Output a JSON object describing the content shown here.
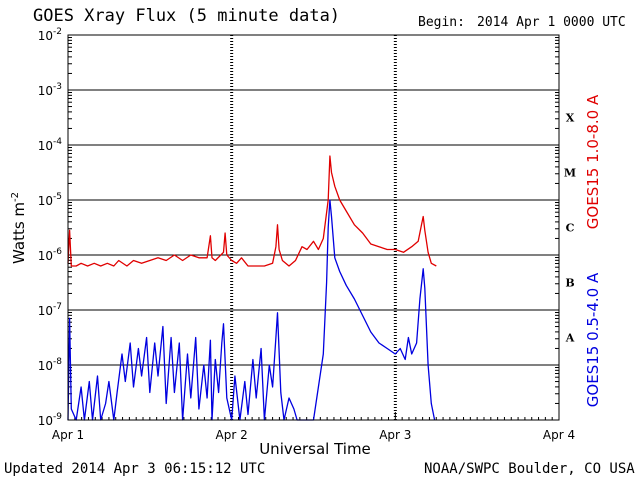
{
  "header": {
    "title": "GOES Xray Flux (5 minute data)",
    "begin_label": "Begin:",
    "begin_value": "2014 Apr 1 0000 UTC"
  },
  "footer": {
    "updated": "Updated 2014 Apr  3 06:15:12 UTC",
    "credit": "NOAA/SWPC Boulder, CO USA"
  },
  "chart_data": {
    "type": "line",
    "title": "GOES Xray Flux (5 minute data)",
    "xlabel": "Universal Time",
    "ylabel": "Watts m",
    "ylabel_sup": "-2",
    "yscale": "log",
    "ylim_exp": [
      -9,
      -2
    ],
    "xlim_days": [
      0,
      3
    ],
    "grid": true,
    "x_ticks": [
      {
        "x": 0,
        "label": "Apr 1"
      },
      {
        "x": 1,
        "label": "Apr 2"
      },
      {
        "x": 2,
        "label": "Apr 3"
      },
      {
        "x": 3,
        "label": "Apr 4"
      }
    ],
    "y_ticks": [
      {
        "exp": -9,
        "label": "10",
        "sup": "-9"
      },
      {
        "exp": -8,
        "label": "10",
        "sup": "-8"
      },
      {
        "exp": -7,
        "label": "10",
        "sup": "-7"
      },
      {
        "exp": -6,
        "label": "10",
        "sup": "-6"
      },
      {
        "exp": -5,
        "label": "10",
        "sup": "-5"
      },
      {
        "exp": -4,
        "label": "10",
        "sup": "-4"
      },
      {
        "exp": -3,
        "label": "10",
        "sup": "-3"
      },
      {
        "exp": -2,
        "label": "10",
        "sup": "-2"
      }
    ],
    "flare_classes": [
      {
        "label": "A",
        "exp": -7.5
      },
      {
        "label": "B",
        "exp": -6.5
      },
      {
        "label": "C",
        "exp": -5.5
      },
      {
        "label": "M",
        "exp": -4.5
      },
      {
        "label": "X",
        "exp": -3.5
      }
    ],
    "series": [
      {
        "name": "GOES15 1.0-8.0 A",
        "color": "#e00000",
        "points": [
          [
            0.0,
            -6.15
          ],
          [
            0.01,
            -5.55
          ],
          [
            0.02,
            -6.2
          ],
          [
            0.05,
            -6.2
          ],
          [
            0.08,
            -6.15
          ],
          [
            0.12,
            -6.2
          ],
          [
            0.16,
            -6.15
          ],
          [
            0.2,
            -6.2
          ],
          [
            0.24,
            -6.15
          ],
          [
            0.28,
            -6.2
          ],
          [
            0.31,
            -6.1
          ],
          [
            0.36,
            -6.2
          ],
          [
            0.4,
            -6.1
          ],
          [
            0.45,
            -6.15
          ],
          [
            0.5,
            -6.1
          ],
          [
            0.55,
            -6.05
          ],
          [
            0.6,
            -6.1
          ],
          [
            0.65,
            -6.0
          ],
          [
            0.7,
            -6.1
          ],
          [
            0.75,
            -6.0
          ],
          [
            0.8,
            -6.05
          ],
          [
            0.85,
            -6.05
          ],
          [
            0.87,
            -5.65
          ],
          [
            0.88,
            -6.05
          ],
          [
            0.9,
            -6.1
          ],
          [
            0.95,
            -5.95
          ],
          [
            0.96,
            -5.6
          ],
          [
            0.97,
            -6.0
          ],
          [
            1.0,
            -6.1
          ],
          [
            1.03,
            -6.15
          ],
          [
            1.06,
            -6.05
          ],
          [
            1.1,
            -6.2
          ],
          [
            1.15,
            -6.2
          ],
          [
            1.2,
            -6.2
          ],
          [
            1.25,
            -6.15
          ],
          [
            1.27,
            -5.85
          ],
          [
            1.28,
            -5.45
          ],
          [
            1.29,
            -5.9
          ],
          [
            1.31,
            -6.1
          ],
          [
            1.35,
            -6.2
          ],
          [
            1.39,
            -6.1
          ],
          [
            1.43,
            -5.85
          ],
          [
            1.46,
            -5.9
          ],
          [
            1.5,
            -5.75
          ],
          [
            1.53,
            -5.9
          ],
          [
            1.56,
            -5.7
          ],
          [
            1.59,
            -5.0
          ],
          [
            1.6,
            -4.2
          ],
          [
            1.61,
            -4.5
          ],
          [
            1.63,
            -4.75
          ],
          [
            1.66,
            -5.0
          ],
          [
            1.7,
            -5.2
          ],
          [
            1.75,
            -5.45
          ],
          [
            1.8,
            -5.6
          ],
          [
            1.85,
            -5.8
          ],
          [
            1.9,
            -5.85
          ],
          [
            1.95,
            -5.9
          ],
          [
            2.0,
            -5.9
          ],
          [
            2.05,
            -5.95
          ],
          [
            2.1,
            -5.85
          ],
          [
            2.14,
            -5.75
          ],
          [
            2.16,
            -5.45
          ],
          [
            2.17,
            -5.3
          ],
          [
            2.18,
            -5.55
          ],
          [
            2.2,
            -5.95
          ],
          [
            2.22,
            -6.15
          ],
          [
            2.25,
            -6.2
          ]
        ]
      },
      {
        "name": "GOES15 0.5-4.0 A",
        "color": "#0000e0",
        "points": [
          [
            0.0,
            -9.0
          ],
          [
            0.01,
            -7.15
          ],
          [
            0.02,
            -8.8
          ],
          [
            0.05,
            -9.0
          ],
          [
            0.08,
            -8.4
          ],
          [
            0.1,
            -9.0
          ],
          [
            0.13,
            -8.3
          ],
          [
            0.15,
            -9.0
          ],
          [
            0.18,
            -8.2
          ],
          [
            0.2,
            -9.0
          ],
          [
            0.23,
            -8.7
          ],
          [
            0.25,
            -8.3
          ],
          [
            0.28,
            -9.0
          ],
          [
            0.3,
            -8.5
          ],
          [
            0.33,
            -7.8
          ],
          [
            0.35,
            -8.3
          ],
          [
            0.38,
            -7.6
          ],
          [
            0.4,
            -8.4
          ],
          [
            0.43,
            -7.7
          ],
          [
            0.45,
            -8.2
          ],
          [
            0.48,
            -7.5
          ],
          [
            0.5,
            -8.5
          ],
          [
            0.53,
            -7.6
          ],
          [
            0.55,
            -8.2
          ],
          [
            0.58,
            -7.3
          ],
          [
            0.6,
            -8.7
          ],
          [
            0.63,
            -7.5
          ],
          [
            0.65,
            -8.5
          ],
          [
            0.68,
            -7.6
          ],
          [
            0.7,
            -9.0
          ],
          [
            0.73,
            -7.8
          ],
          [
            0.75,
            -8.6
          ],
          [
            0.78,
            -7.5
          ],
          [
            0.8,
            -8.8
          ],
          [
            0.83,
            -8.0
          ],
          [
            0.85,
            -8.6
          ],
          [
            0.87,
            -7.55
          ],
          [
            0.88,
            -9.0
          ],
          [
            0.9,
            -7.9
          ],
          [
            0.92,
            -8.5
          ],
          [
            0.94,
            -7.6
          ],
          [
            0.95,
            -7.25
          ],
          [
            0.97,
            -8.6
          ],
          [
            1.0,
            -9.0
          ],
          [
            1.02,
            -8.2
          ],
          [
            1.05,
            -9.0
          ],
          [
            1.08,
            -8.3
          ],
          [
            1.1,
            -8.9
          ],
          [
            1.13,
            -7.9
          ],
          [
            1.15,
            -8.6
          ],
          [
            1.18,
            -7.7
          ],
          [
            1.2,
            -9.0
          ],
          [
            1.23,
            -8.0
          ],
          [
            1.25,
            -8.4
          ],
          [
            1.27,
            -7.5
          ],
          [
            1.28,
            -7.05
          ],
          [
            1.3,
            -8.5
          ],
          [
            1.32,
            -9.0
          ],
          [
            1.35,
            -8.6
          ],
          [
            1.38,
            -8.8
          ],
          [
            1.4,
            -9.0
          ],
          [
            1.45,
            -9.0
          ],
          [
            1.5,
            -9.0
          ],
          [
            1.53,
            -8.4
          ],
          [
            1.56,
            -7.8
          ],
          [
            1.58,
            -6.5
          ],
          [
            1.59,
            -5.5
          ],
          [
            1.6,
            -5.0
          ],
          [
            1.61,
            -5.3
          ],
          [
            1.63,
            -6.05
          ],
          [
            1.66,
            -6.3
          ],
          [
            1.7,
            -6.55
          ],
          [
            1.75,
            -6.8
          ],
          [
            1.8,
            -7.1
          ],
          [
            1.85,
            -7.4
          ],
          [
            1.9,
            -7.6
          ],
          [
            1.95,
            -7.7
          ],
          [
            2.0,
            -7.8
          ],
          [
            2.03,
            -7.7
          ],
          [
            2.06,
            -7.9
          ],
          [
            2.08,
            -7.5
          ],
          [
            2.1,
            -7.8
          ],
          [
            2.13,
            -7.6
          ],
          [
            2.15,
            -6.8
          ],
          [
            2.17,
            -6.25
          ],
          [
            2.18,
            -6.6
          ],
          [
            2.2,
            -8.0
          ],
          [
            2.22,
            -8.7
          ],
          [
            2.24,
            -9.0
          ]
        ]
      }
    ]
  }
}
